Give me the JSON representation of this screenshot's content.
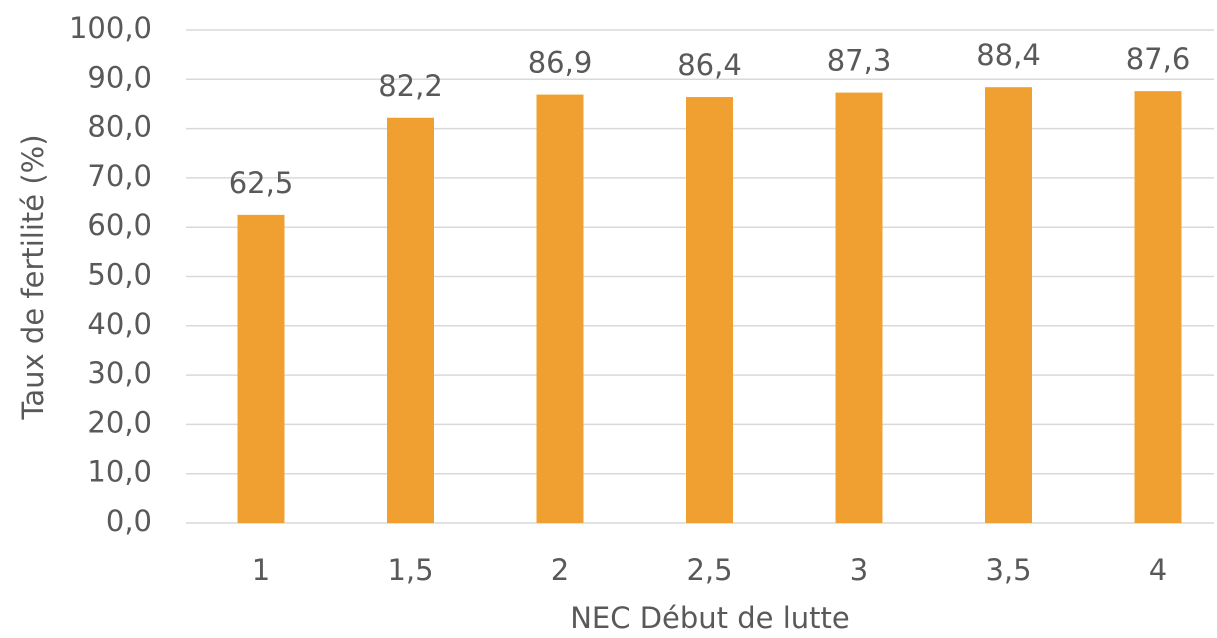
{
  "chart_data": {
    "type": "bar",
    "xlabel": "NEC Début de lutte",
    "ylabel": "Taux de fertilité (%)",
    "categories": [
      "1",
      "1,5",
      "2",
      "2,5",
      "3",
      "3,5",
      "4"
    ],
    "values": [
      62.5,
      82.2,
      86.9,
      86.4,
      87.3,
      88.4,
      87.6
    ],
    "value_labels": [
      "62,5",
      "82,2",
      "86,9",
      "86,4",
      "87,3",
      "88,4",
      "87,6"
    ],
    "color": "#f0a030",
    "ylim": [
      0,
      100
    ],
    "yticks": [
      {
        "value": 0,
        "label": "0,0"
      },
      {
        "value": 10,
        "label": "10,0"
      },
      {
        "value": 20,
        "label": "20,0"
      },
      {
        "value": 30,
        "label": "30,0"
      },
      {
        "value": 40,
        "label": "40,0"
      },
      {
        "value": 50,
        "label": "50,0"
      },
      {
        "value": 60,
        "label": "60,0"
      },
      {
        "value": 70,
        "label": "70,0"
      },
      {
        "value": 80,
        "label": "80,0"
      },
      {
        "value": 90,
        "label": "90,0"
      },
      {
        "value": 100,
        "label": "100,0"
      }
    ],
    "grid": true
  }
}
